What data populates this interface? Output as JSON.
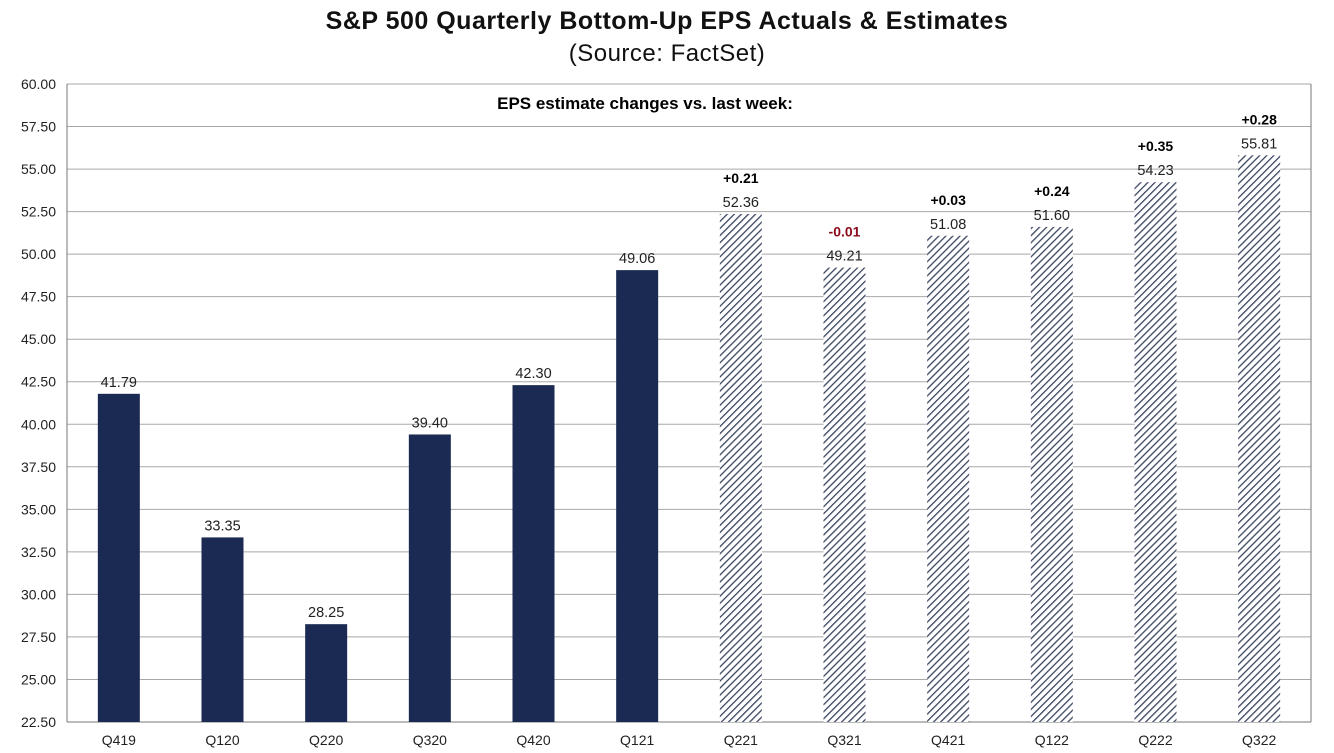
{
  "chart_data": {
    "type": "bar",
    "title": "S&P 500 Quarterly Bottom-Up EPS Actuals & Estimates",
    "subtitle": "(Source: FactSet)",
    "annotation": "EPS estimate changes vs. last week:",
    "xlabel": "",
    "ylabel": "",
    "ylim": [
      22.5,
      60.0
    ],
    "yticks": [
      "22.50",
      "25.00",
      "27.50",
      "30.00",
      "32.50",
      "35.00",
      "37.50",
      "40.00",
      "42.50",
      "45.00",
      "47.50",
      "50.00",
      "52.50",
      "55.00",
      "57.50",
      "60.00"
    ],
    "grid": true,
    "categories": [
      "Q419",
      "Q120",
      "Q220",
      "Q320",
      "Q420",
      "Q121",
      "Q221",
      "Q321",
      "Q421",
      "Q122",
      "Q222",
      "Q322"
    ],
    "values": [
      41.79,
      33.35,
      28.25,
      39.4,
      42.3,
      49.06,
      52.36,
      49.21,
      51.08,
      51.6,
      54.23,
      55.81
    ],
    "value_labels": [
      "41.79",
      "33.35",
      "28.25",
      "39.40",
      "42.30",
      "49.06",
      "52.36",
      "49.21",
      "51.08",
      "51.60",
      "54.23",
      "55.81"
    ],
    "bar_kind": [
      "actual",
      "actual",
      "actual",
      "actual",
      "actual",
      "actual",
      "estimate",
      "estimate",
      "estimate",
      "estimate",
      "estimate",
      "estimate"
    ],
    "weekly_changes": [
      "",
      "",
      "",
      "",
      "",
      "",
      "+0.21",
      "-0.01",
      "+0.03",
      "+0.24",
      "+0.35",
      "+0.28"
    ],
    "colors": {
      "actual": "#1b2a52",
      "estimate_stripe": "#3a4560",
      "positive_change": "#000000",
      "negative_change": "#8b0a1a",
      "gridline": "#a8a8a8",
      "axis": "#777777"
    }
  }
}
